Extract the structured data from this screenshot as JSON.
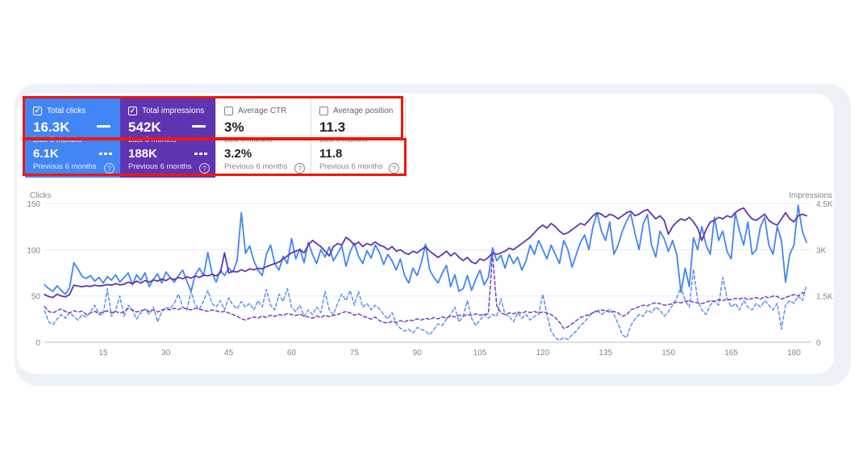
{
  "page": {
    "background": "#ffffff",
    "panel_background": "#edf1f8",
    "card_background": "#ffffff"
  },
  "icons": {
    "help": "?",
    "check": "✓"
  },
  "annotations": {
    "color": "#f3140e"
  },
  "metric_cards": [
    {
      "title": "Total clicks",
      "checked": true,
      "selected": true,
      "background": "#4285f4",
      "title_color": "#ffffff",
      "value_color": "#ffffff",
      "label_color": "rgba(255,255,255,0.87)",
      "muted_color": "rgba(255,255,255,0.8)",
      "checkbox_border": "#ffffff",
      "primary_value": "16.3K",
      "primary_label": "Last 6 months",
      "secondary_value": "6.1K",
      "secondary_label": "Previous 6 months"
    },
    {
      "title": "Total impressions",
      "checked": true,
      "selected": true,
      "background": "#5e35b1",
      "title_color": "#ffffff",
      "value_color": "#ffffff",
      "label_color": "rgba(255,255,255,0.87)",
      "muted_color": "rgba(255,255,255,0.8)",
      "checkbox_border": "#ffffff",
      "primary_value": "542K",
      "primary_label": "Last 6 months",
      "secondary_value": "188K",
      "secondary_label": "Previous 6 months"
    },
    {
      "title": "Average CTR",
      "checked": false,
      "selected": false,
      "background": "#ffffff",
      "title_color": "#5f6368",
      "value_color": "#202124",
      "label_color": "#80868b",
      "muted_color": "#80868b",
      "checkbox_border": "#80868b",
      "primary_value": "3%",
      "primary_label": "Last 6 months",
      "secondary_value": "3.2%",
      "secondary_label": "Previous 6 months"
    },
    {
      "title": "Average position",
      "checked": false,
      "selected": false,
      "background": "#ffffff",
      "title_color": "#5f6368",
      "value_color": "#202124",
      "label_color": "#80868b",
      "muted_color": "#80868b",
      "checkbox_border": "#80868b",
      "primary_value": "11.3",
      "primary_label": "Last 6 months",
      "secondary_value": "11.8",
      "secondary_label": "Previous 6 months"
    }
  ],
  "chart_data": {
    "type": "line",
    "x_unit": "day",
    "x_range": [
      1,
      183
    ],
    "x_ticks": [
      15,
      30,
      45,
      60,
      75,
      90,
      105,
      120,
      135,
      150,
      165,
      180
    ],
    "left_axis": {
      "title": "Clicks",
      "max": 150,
      "ticks": [
        150,
        100,
        50,
        0
      ],
      "tick_labels": [
        "150",
        "100",
        "50",
        "0"
      ]
    },
    "right_axis": {
      "title": "Impressions",
      "max": 4500,
      "ticks": [
        4500,
        3000,
        1500,
        0
      ],
      "tick_labels": [
        "4.5K",
        "3K",
        "1.5K",
        "0"
      ]
    },
    "colors": {
      "axis_text": "#80868b",
      "grid": "#e8eaed",
      "zero_line": "#b9bdc4"
    },
    "legend_position": "none",
    "grid": "horizontal",
    "series": [
      {
        "name": "Clicks - Last 6 months",
        "axis": "left",
        "style": "solid",
        "color": "#4285f4",
        "values": [
          62,
          58,
          55,
          61,
          56,
          52,
          59,
          86,
          79,
          71,
          69,
          72,
          66,
          70,
          64,
          71,
          67,
          73,
          65,
          70,
          75,
          62,
          73,
          67,
          75,
          60,
          68,
          74,
          64,
          76,
          70,
          65,
          72,
          78,
          66,
          55,
          73,
          80,
          72,
          97,
          75,
          65,
          78,
          72,
          80,
          76,
          88,
          140,
          96,
          104,
          88,
          78,
          72,
          95,
          105,
          85,
          78,
          93,
          85,
          112,
          90,
          101,
          86,
          108,
          95,
          85,
          100,
          92,
          103,
          88,
          96,
          104,
          82,
          98,
          107,
          93,
          85,
          99,
          91,
          105,
          97,
          84,
          95,
          88,
          78,
          90,
          72,
          64,
          80,
          72,
          86,
          106,
          78,
          70,
          64,
          75,
          83,
          60,
          73,
          55,
          58,
          72,
          56,
          68,
          78,
          62,
          70,
          102,
          88,
          94,
          80,
          95,
          85,
          92,
          78,
          88,
          105,
          95,
          110,
          100,
          90,
          105,
          95,
          85,
          110,
          100,
          81,
          95,
          108,
          116,
          100,
          125,
          140,
          120,
          110,
          130,
          95,
          105,
          120,
          131,
          139,
          118,
          100,
          128,
          138,
          105,
          92,
          120,
          112,
          98,
          110,
          95,
          54,
          80,
          60,
          113,
          100,
          125,
          105,
          95,
          135,
          110,
          120,
          98,
          90,
          140,
          120,
          105,
          130,
          95,
          100,
          125,
          135,
          105,
          95,
          125,
          110,
          65,
          95,
          105,
          148,
          120,
          108
        ]
      },
      {
        "name": "Impressions - Last 6 months",
        "axis": "right",
        "style": "solid",
        "color": "#5e35b1",
        "values": [
          1550,
          1480,
          1450,
          1560,
          1500,
          1470,
          1550,
          1850,
          1820,
          1800,
          1830,
          1810,
          1850,
          1820,
          1840,
          1870,
          1850,
          1900,
          1860,
          1880,
          1950,
          1900,
          1980,
          1920,
          2000,
          1950,
          2020,
          1980,
          2050,
          2000,
          2080,
          2030,
          2100,
          2060,
          2120,
          2080,
          2150,
          2100,
          2180,
          2150,
          2200,
          2150,
          2250,
          2900,
          2250,
          2300,
          2280,
          2350,
          2300,
          2380,
          2350,
          2400,
          2380,
          2450,
          2500,
          2550,
          2600,
          2700,
          2800,
          2900,
          2950,
          3000,
          2900,
          3150,
          3300,
          3200,
          3100,
          2950,
          2800,
          3100,
          3200,
          3150,
          3400,
          3300,
          3150,
          3250,
          3100,
          3200,
          3150,
          3250,
          3150,
          3100,
          3000,
          3100,
          2950,
          3000,
          2900,
          2850,
          2950,
          2900,
          3000,
          3100,
          2950,
          2850,
          2750,
          2850,
          2950,
          2800,
          2900,
          2750,
          2650,
          2750,
          2600,
          2550,
          2700,
          2650,
          2750,
          2900,
          2850,
          2900,
          2950,
          3050,
          3000,
          3100,
          3200,
          3300,
          3400,
          3550,
          3700,
          3800,
          3700,
          3850,
          3750,
          3600,
          3500,
          3550,
          3650,
          3750,
          3850,
          3800,
          3950,
          4100,
          4200,
          4150,
          4050,
          4150,
          4100,
          4000,
          4100,
          4200,
          4250,
          4100,
          4150,
          4250,
          4300,
          4150,
          4000,
          4100,
          3950,
          3500,
          3750,
          3900,
          4000,
          3950,
          4050,
          3900,
          3700,
          3300,
          3650,
          3900,
          3950,
          4050,
          4000,
          4100,
          4050,
          4200,
          4300,
          4350,
          4150,
          4000,
          3950,
          4050,
          4150,
          3950,
          3850,
          3800,
          4000,
          4200,
          4000,
          3900,
          4100,
          4150,
          4100
        ]
      },
      {
        "name": "Clicks - Previous 6 months",
        "axis": "left",
        "style": "dashed",
        "color": "#5a92f0",
        "values": [
          34,
          22,
          19,
          25,
          30,
          26,
          32,
          28,
          24,
          30,
          27,
          33,
          40,
          30,
          30,
          58,
          28,
          35,
          50,
          28,
          40,
          35,
          25,
          32,
          36,
          30,
          38,
          22,
          33,
          38,
          36,
          42,
          52,
          38,
          35,
          55,
          40,
          36,
          45,
          56,
          42,
          38,
          45,
          35,
          48,
          40,
          36,
          44,
          38,
          42,
          35,
          45,
          38,
          57,
          40,
          35,
          52,
          44,
          58,
          38,
          33,
          40,
          28,
          35,
          30,
          38,
          32,
          55,
          35,
          30,
          42,
          52,
          45,
          56,
          40,
          55,
          38,
          42,
          35,
          40,
          36,
          30,
          25,
          32,
          20,
          15,
          12,
          14,
          10,
          16,
          14,
          12,
          8,
          14,
          20,
          18,
          25,
          30,
          38,
          22,
          28,
          45,
          26,
          18,
          24,
          30,
          26,
          30,
          28,
          47,
          30,
          28,
          22,
          32,
          26,
          30,
          24,
          28,
          30,
          52,
          30,
          12,
          5,
          2,
          5,
          3,
          8,
          12,
          18,
          22,
          28,
          32,
          35,
          30,
          33,
          36,
          30,
          20,
          8,
          5,
          18,
          25,
          30,
          28,
          35,
          32,
          38,
          35,
          28,
          33,
          40,
          48,
          60,
          45,
          38,
          79,
          45,
          35,
          30,
          40,
          45,
          40,
          70,
          48,
          38,
          42,
          35,
          45,
          38,
          35,
          42,
          38,
          45,
          40,
          35,
          42,
          14,
          40,
          45,
          42,
          50,
          45,
          62
        ]
      },
      {
        "name": "Impressions - Previous 6 months",
        "axis": "right",
        "style": "dashed",
        "color": "#6f3fc4",
        "values": [
          1150,
          1000,
          950,
          1020,
          1080,
          1000,
          950,
          1020,
          980,
          1010,
          900,
          950,
          1000,
          940,
          980,
          1020,
          960,
          1000,
          950,
          980,
          1100,
          1050,
          980,
          1020,
          1060,
          1000,
          1050,
          980,
          1040,
          1080,
          1050,
          1100,
          1060,
          1120,
          1080,
          1050,
          1100,
          1070,
          1040,
          1000,
          1050,
          1020,
          980,
          1000,
          950,
          900,
          850,
          760,
          720,
          780,
          820,
          780,
          850,
          800,
          880,
          840,
          900,
          870,
          930,
          900,
          870,
          910,
          850,
          820,
          780,
          850,
          800,
          880,
          830,
          870,
          900,
          950,
          1000,
          950,
          880,
          920,
          850,
          800,
          750,
          820,
          700,
          650,
          620,
          680,
          640,
          700,
          660,
          720,
          700,
          760,
          720,
          780,
          740,
          800,
          760,
          820,
          780,
          850,
          820,
          880,
          850,
          900,
          870,
          920,
          880,
          900,
          920,
          2850,
          1200,
          950,
          900,
          950,
          920,
          980,
          940,
          1000,
          960,
          1000,
          950,
          980,
          950,
          900,
          800,
          650,
          450,
          500,
          600,
          700,
          800,
          850,
          900,
          950,
          1000,
          1050,
          1020,
          980,
          1000,
          950,
          850,
          880,
          1050,
          1100,
          1150,
          1200,
          1180,
          1250,
          1280,
          1250,
          1200,
          1220,
          1250,
          1300,
          1280,
          1320,
          1350,
          1300,
          1280,
          1250,
          1300,
          1350,
          1320,
          1380,
          1350,
          1400,
          1380,
          1420,
          1400,
          1450,
          1380,
          1420,
          1450,
          1400,
          1480,
          1440,
          1500,
          1480,
          1400,
          1450,
          1500,
          1550,
          1500,
          1600,
          1620
        ]
      }
    ]
  }
}
